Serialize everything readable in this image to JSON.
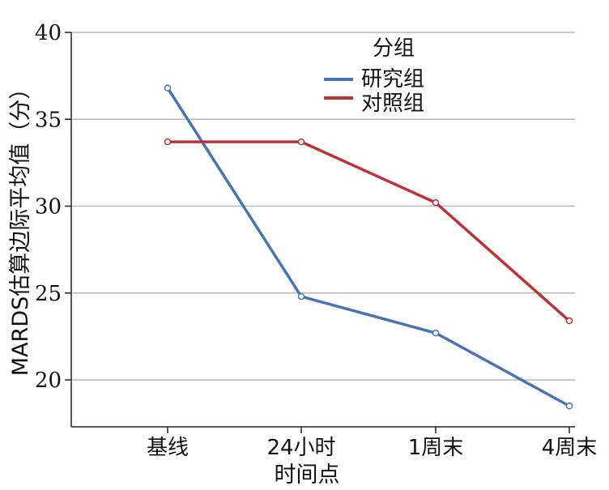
{
  "chart_data": {
    "type": "line",
    "xlabel": "时间点",
    "ylabel": "MARDS估算边际平均值（分）",
    "categories": [
      "基线",
      "24小时",
      "1周末",
      "4周末"
    ],
    "ylim": [
      17.3,
      40
    ],
    "yticks": [
      20,
      25,
      30,
      35,
      40
    ],
    "grid": true,
    "legend": {
      "title": "分组",
      "position": "top-right"
    },
    "series": [
      {
        "name": "研究组",
        "color": "#4a73b4",
        "values": [
          36.8,
          24.8,
          22.7,
          18.5
        ]
      },
      {
        "name": "对照组",
        "color": "#c0303b",
        "values": [
          33.7,
          33.7,
          30.2,
          23.4
        ]
      }
    ]
  }
}
